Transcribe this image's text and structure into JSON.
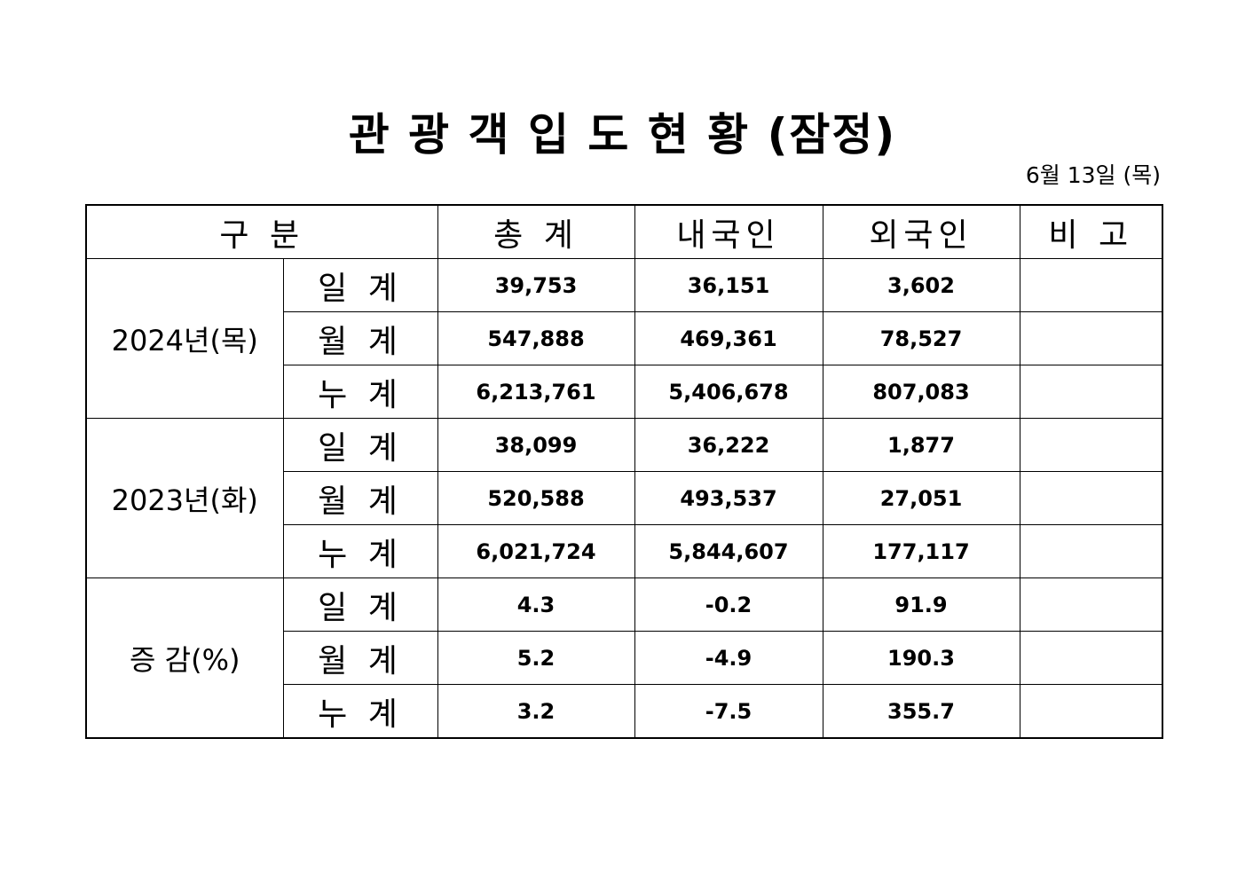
{
  "header": {
    "title": "관 광 객 입 도 현 황 (잠정)",
    "date": "6월 13일 (목)"
  },
  "table": {
    "columns": [
      "구 분",
      "총 계",
      "내국인",
      "외국인",
      "비 고"
    ],
    "groups": [
      {
        "label": "2024년(목)",
        "rows": [
          {
            "label": "일 계",
            "values": [
              "39,753",
              "36,151",
              "3,602"
            ]
          },
          {
            "label": "월 계",
            "values": [
              "547,888",
              "469,361",
              "78,527"
            ]
          },
          {
            "label": "누 계",
            "values": [
              "6,213,761",
              "5,406,678",
              "807,083"
            ]
          }
        ]
      },
      {
        "label": "2023년(화)",
        "rows": [
          {
            "label": "일 계",
            "values": [
              "38,099",
              "36,222",
              "1,877"
            ]
          },
          {
            "label": "월 계",
            "values": [
              "520,588",
              "493,537",
              "27,051"
            ]
          },
          {
            "label": "누 계",
            "values": [
              "6,021,724",
              "5,844,607",
              "177,117"
            ]
          }
        ]
      },
      {
        "label": "증 감(%)",
        "rows": [
          {
            "label": "일 계",
            "values": [
              "4.3",
              "-0.2",
              "91.9"
            ]
          },
          {
            "label": "월 계",
            "values": [
              "5.2",
              "-4.9",
              "190.3"
            ]
          },
          {
            "label": "누 계",
            "values": [
              "3.2",
              "-7.5",
              "355.7"
            ]
          }
        ]
      }
    ]
  }
}
